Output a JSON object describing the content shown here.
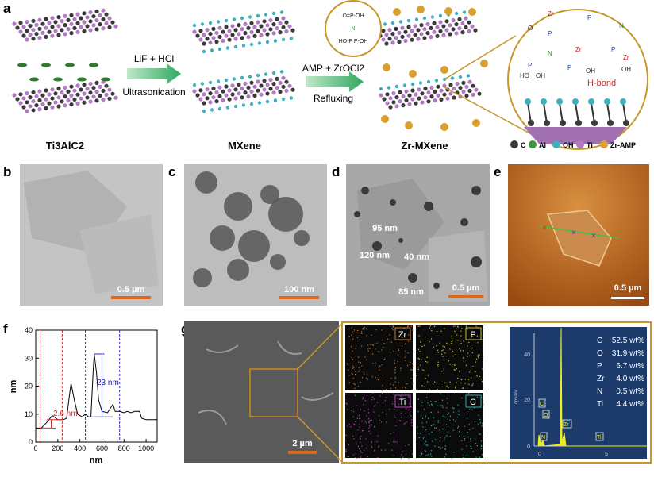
{
  "panel_labels": [
    "a",
    "b",
    "c",
    "d",
    "e",
    "f",
    "g"
  ],
  "panel_a": {
    "structures": [
      "Ti3AlC2",
      "MXene",
      "Zr-MXene"
    ],
    "step1": {
      "top": "LiF + HCl",
      "bottom": "Ultrasonication"
    },
    "step2": {
      "top": "AMP + ZrOCl2",
      "bottom": "Refluxing"
    },
    "hbond_label": "H-bond",
    "legend": [
      {
        "label": "C",
        "color": "#3a3a3a"
      },
      {
        "label": "Al",
        "color": "#3a9a3a"
      },
      {
        "label": "OH",
        "color": "#3fb0c0"
      },
      {
        "label": "Ti",
        "color": "#b27ac4"
      },
      {
        "label": "Zr-AMP",
        "color": "#d9a030"
      }
    ],
    "accent_color": "#c8962e"
  },
  "panel_b": {
    "scale_bar": "0.5 µm"
  },
  "panel_c": {
    "scale_bar": "100 nm"
  },
  "panel_d": {
    "scale_bar": "0.5 µm",
    "annotations": [
      "95 nm",
      "120 nm",
      "40 nm",
      "85 nm"
    ]
  },
  "panel_e": {
    "scale_bar": "0.5 µm"
  },
  "chart_data": {
    "type": "line",
    "xlabel": "nm",
    "ylabel": "nm",
    "xlim": [
      0,
      1100
    ],
    "ylim": [
      0,
      40
    ],
    "xticks": [
      0,
      200,
      400,
      600,
      800,
      1000
    ],
    "yticks": [
      0,
      10,
      20,
      30,
      40
    ],
    "x": [
      0,
      50,
      100,
      150,
      200,
      250,
      280,
      300,
      320,
      350,
      380,
      420,
      450,
      480,
      500,
      520,
      530,
      550,
      570,
      600,
      650,
      700,
      720,
      760,
      800,
      830,
      860,
      900,
      940,
      960,
      1000,
      1100
    ],
    "y": [
      5,
      5,
      7,
      9.5,
      8,
      8,
      8.5,
      15,
      21,
      15,
      10,
      9,
      10,
      9,
      9,
      25,
      31.5,
      25,
      15,
      11,
      10.5,
      13.5,
      11,
      11,
      10.5,
      11,
      10.5,
      11,
      11,
      8.5,
      8,
      8
    ],
    "red_markers_x": [
      40,
      240
    ],
    "blue_markers_x": [
      450,
      760
    ],
    "annotations": [
      "2.6 nm",
      "23 nm"
    ]
  },
  "panel_g": {
    "scale_bar": "2 µm",
    "maps": [
      {
        "element": "Zr",
        "color": "#c87830"
      },
      {
        "element": "P",
        "color": "#c8c030"
      },
      {
        "element": "Ti",
        "color": "#c040c0"
      },
      {
        "element": "C",
        "color": "#30b0b0"
      }
    ],
    "eds": {
      "ylabel": "cps/eV",
      "yticks": [
        "0",
        "20",
        "40"
      ],
      "xticks": [
        "0",
        "5"
      ],
      "peaks": [
        "C",
        "O",
        "N",
        "Zr",
        "Ti"
      ],
      "composition": [
        {
          "el": "C",
          "val": "52.5 wt%"
        },
        {
          "el": "O",
          "val": "31.9 wt%"
        },
        {
          "el": "P",
          "val": "6.7 wt%"
        },
        {
          "el": "Zr",
          "val": "4.0 wt%"
        },
        {
          "el": "N",
          "val": "0.5 wt%"
        },
        {
          "el": "Ti",
          "val": "4.4 wt%"
        }
      ]
    }
  }
}
